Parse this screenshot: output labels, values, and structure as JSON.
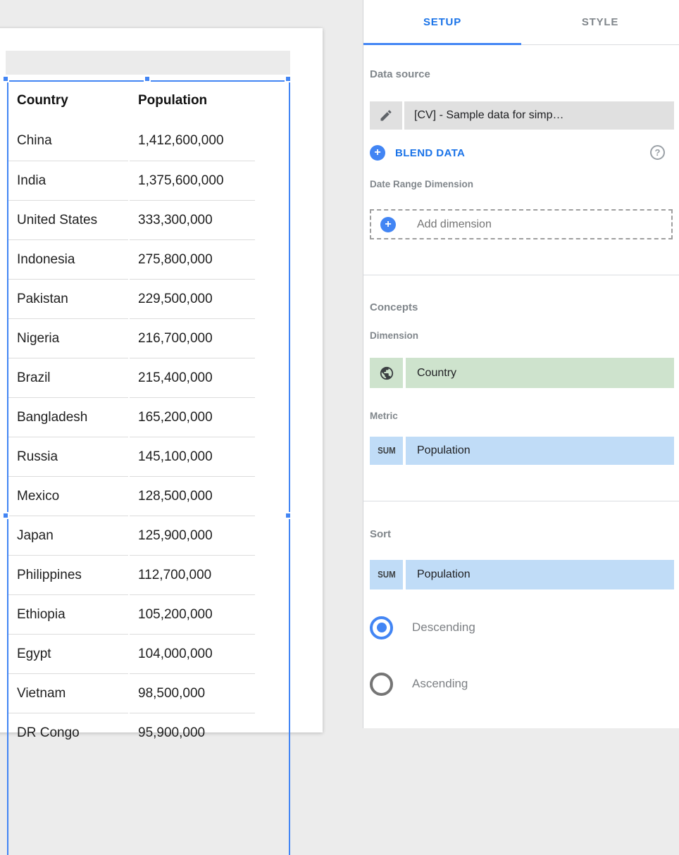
{
  "table": {
    "columns": [
      "Country",
      "Population"
    ],
    "rows": [
      [
        "China",
        "1,412,600,000"
      ],
      [
        "India",
        "1,375,600,000"
      ],
      [
        "United States",
        "333,300,000"
      ],
      [
        "Indonesia",
        "275,800,000"
      ],
      [
        "Pakistan",
        "229,500,000"
      ],
      [
        "Nigeria",
        "216,700,000"
      ],
      [
        "Brazil",
        "215,400,000"
      ],
      [
        "Bangladesh",
        "165,200,000"
      ],
      [
        "Russia",
        "145,100,000"
      ],
      [
        "Mexico",
        "128,500,000"
      ],
      [
        "Japan",
        "125,900,000"
      ],
      [
        "Philippines",
        "112,700,000"
      ],
      [
        "Ethiopia",
        "105,200,000"
      ],
      [
        "Egypt",
        "104,000,000"
      ],
      [
        "Vietnam",
        "98,500,000"
      ],
      [
        "DR Congo",
        "95,900,000"
      ]
    ]
  },
  "panel": {
    "tabs": [
      {
        "label": "SETUP",
        "active": true
      },
      {
        "label": "STYLE",
        "active": false
      }
    ],
    "data_source": {
      "section_label": "Data source",
      "source_name": "[CV] - Sample data for simp…",
      "blend_button": "BLEND DATA",
      "help_glyph": "?"
    },
    "date_range": {
      "section_label": "Date Range Dimension",
      "placeholder": "Add dimension"
    },
    "concepts": {
      "section_label": "Concepts",
      "dimension_label": "Dimension",
      "dimension": {
        "name": "Country",
        "icon": "globe-icon"
      },
      "metric_label": "Metric",
      "metric": {
        "aggregation": "SUM",
        "name": "Population"
      }
    },
    "sort": {
      "section_label": "Sort",
      "field": {
        "aggregation": "SUM",
        "name": "Population"
      },
      "options": [
        {
          "label": "Descending",
          "selected": true
        },
        {
          "label": "Ascending",
          "selected": false
        }
      ]
    }
  },
  "colors": {
    "accent_blue": "#4285f4",
    "link_blue": "#1a73e8",
    "dimension_green": "#cee3cd",
    "metric_blue": "#c0dcf7",
    "source_bar_gray": "#e0e0e0",
    "label_gray": "#80868b",
    "workspace_gray": "#ececec"
  }
}
